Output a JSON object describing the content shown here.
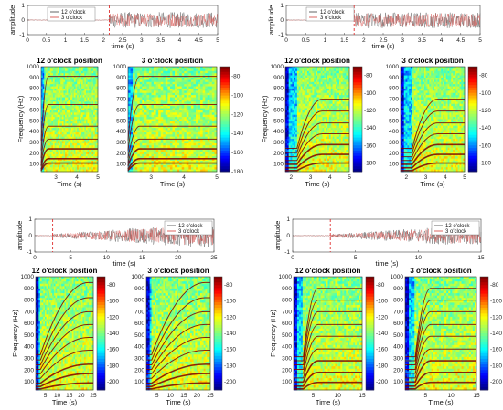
{
  "chart_data": [
    {
      "type": "line",
      "quadrant": "top-left",
      "xlabel": "time (s)",
      "ylabel": "amplitude",
      "xlim": [
        0,
        5
      ],
      "ylim": [
        -1,
        1
      ],
      "xticks": [
        "0",
        "0.5",
        "1",
        "1.5",
        "2",
        "2.5",
        "3",
        "3.5",
        "4",
        "4.5",
        "5"
      ],
      "yticks": [
        "1",
        "0",
        "-1"
      ],
      "event_time": 2.15,
      "envelope": {
        "max_amplitude": 0.55,
        "ramp": "step"
      },
      "legend": [
        "12 o'clock",
        "3 o'clock"
      ],
      "legend_position": "top-left",
      "series_colors": [
        "#555555",
        "#d9534f"
      ]
    },
    {
      "type": "line",
      "quadrant": "top-right",
      "xlabel": "time (s)",
      "ylabel": "amplitude",
      "xlim": [
        0,
        5
      ],
      "ylim": [
        -1,
        1
      ],
      "xticks": [
        "0",
        "0.5",
        "1",
        "1.5",
        "2",
        "2.5",
        "3",
        "3.5",
        "4",
        "4.5",
        "5"
      ],
      "yticks": [
        "1",
        "0",
        "-1"
      ],
      "event_time": 1.75,
      "envelope": {
        "max_amplitude": 0.55,
        "ramp": "step"
      },
      "legend": [
        "12 o'clock",
        "3 o'clock"
      ],
      "legend_position": "top-left",
      "series_colors": [
        "#555555",
        "#d9534f"
      ]
    },
    {
      "type": "line",
      "quadrant": "bottom-left",
      "xlabel": "time (s)",
      "ylabel": "amplitude",
      "xlim": [
        0,
        25
      ],
      "ylim": [
        -1,
        1
      ],
      "xticks": [
        "0",
        "5",
        "10",
        "15",
        "20",
        "25"
      ],
      "yticks": [
        "1",
        "0",
        "-1"
      ],
      "event_time": 2.5,
      "envelope": {
        "max_amplitude": 0.7,
        "ramp": "linear"
      },
      "legend": [
        "12 o'clock",
        "3 o'clock"
      ],
      "legend_position": "top-right",
      "series_colors": [
        "#555555",
        "#d9534f"
      ]
    },
    {
      "type": "line",
      "quadrant": "bottom-right",
      "xlabel": "time (s)",
      "ylabel": "amplitude",
      "xlim": [
        0,
        15
      ],
      "ylim": [
        -1,
        1
      ],
      "xticks": [
        "0",
        "5",
        "10",
        "15"
      ],
      "yticks": [
        "1",
        "0",
        "-1"
      ],
      "event_time": 3,
      "envelope": {
        "max_amplitude": 0.6,
        "ramp": "linear"
      },
      "legend": [
        "12 o'clock",
        "3 o'clock"
      ],
      "legend_position": "top-right",
      "series_colors": [
        "#555555",
        "#d9534f"
      ]
    },
    {
      "type": "heatmap",
      "quadrant": "top-left",
      "title": "12 o'clock position",
      "xlabel": "Time (s)",
      "ylabel": "Frequency (Hz)",
      "xlim": [
        2.3,
        5
      ],
      "ylim": [
        30,
        1000
      ],
      "xticks": [
        "3",
        "4",
        "5"
      ],
      "yticks": [
        "100",
        "200",
        "300",
        "400",
        "500",
        "600",
        "700",
        "800",
        "900",
        "1000"
      ],
      "harmonics_hz": [
        110,
        150,
        240,
        330,
        450,
        650,
        910
      ],
      "sweep": {
        "onset_s": 2.3,
        "duration_s": 0.35
      },
      "colormap": "jet",
      "clim": [
        -180,
        -70
      ]
    },
    {
      "type": "heatmap",
      "quadrant": "top-left",
      "title": "3 o'clock position",
      "xlabel": "Time (s)",
      "ylabel": "",
      "xlim": [
        2.3,
        5
      ],
      "ylim": [
        30,
        1000
      ],
      "xticks": [
        "3",
        "4",
        "5"
      ],
      "yticks": [
        "100",
        "200",
        "300",
        "400",
        "500",
        "600",
        "700",
        "800",
        "900",
        "1000"
      ],
      "harmonics_hz": [
        110,
        150,
        240,
        330,
        450,
        650,
        910
      ],
      "sweep": {
        "onset_s": 2.3,
        "duration_s": 0.35
      },
      "colormap": "jet",
      "clim": [
        -180,
        -70
      ],
      "colorbar_ticks": [
        "-80",
        "-100",
        "-120",
        "-140",
        "-160",
        "-180"
      ]
    },
    {
      "type": "heatmap",
      "quadrant": "top-right",
      "title": "12 o'clock position",
      "xlabel": "Time (s)",
      "ylabel": "Frequency (Hz)",
      "xlim": [
        1.7,
        5
      ],
      "ylim": [
        30,
        1000
      ],
      "xticks": [
        "2",
        "3",
        "4",
        "5"
      ],
      "yticks": [
        "100",
        "200",
        "300",
        "400",
        "500",
        "600",
        "700",
        "800",
        "900",
        "1000"
      ],
      "harmonics_hz": [
        110,
        190,
        280,
        380,
        480,
        590,
        700
      ],
      "sweep": {
        "onset_s": 2.3,
        "duration_s": 1.3
      },
      "colormap": "jet",
      "clim": [
        -190,
        -70
      ],
      "colorbar_ticks": [
        "-80",
        "-100",
        "-120",
        "-140",
        "-160",
        "-180"
      ]
    },
    {
      "type": "heatmap",
      "quadrant": "top-right",
      "title": "3 o'clock position",
      "xlabel": "Time (s)",
      "ylabel": "",
      "xlim": [
        1.7,
        5
      ],
      "ylim": [
        30,
        1000
      ],
      "xticks": [
        "2",
        "3",
        "4",
        "5"
      ],
      "yticks": [
        "100",
        "200",
        "300",
        "400",
        "500",
        "600",
        "700",
        "800",
        "900",
        "1000"
      ],
      "harmonics_hz": [
        110,
        190,
        280,
        380,
        480,
        590,
        700
      ],
      "sweep": {
        "onset_s": 2.3,
        "duration_s": 1.3
      },
      "colormap": "jet",
      "clim": [
        -190,
        -70
      ],
      "colorbar_ticks": [
        "-80",
        "-100",
        "-120",
        "-140",
        "-160",
        "-180"
      ]
    },
    {
      "type": "heatmap",
      "quadrant": "bottom-left",
      "title": "12 o'clock position",
      "xlabel": "Time (s)",
      "ylabel": "Frequency (Hz)",
      "xlim": [
        1,
        25
      ],
      "ylim": [
        30,
        1000
      ],
      "xticks": [
        "5",
        "10",
        "15",
        "20",
        "25"
      ],
      "yticks": [
        "100",
        "200",
        "300",
        "400",
        "500",
        "600",
        "700",
        "800",
        "900",
        "1000"
      ],
      "harmonics_hz": [
        90,
        170,
        250,
        370,
        480,
        590,
        700,
        820,
        950
      ],
      "sweep": {
        "onset_s": 3,
        "duration_s": 20
      },
      "colormap": "jet",
      "clim": [
        -210,
        -70
      ],
      "colorbar_ticks": [
        "-80",
        "-100",
        "-120",
        "-140",
        "-160",
        "-180",
        "-200"
      ]
    },
    {
      "type": "heatmap",
      "quadrant": "bottom-left",
      "title": "3 o'clock position",
      "xlabel": "Time (s)",
      "ylabel": "",
      "xlim": [
        1,
        25
      ],
      "ylim": [
        30,
        1000
      ],
      "xticks": [
        "5",
        "10",
        "15",
        "20",
        "25"
      ],
      "yticks": [
        "100",
        "200",
        "300",
        "400",
        "500",
        "600",
        "700",
        "800",
        "900",
        "1000"
      ],
      "harmonics_hz": [
        90,
        170,
        250,
        370,
        480,
        590,
        700,
        820,
        950
      ],
      "sweep": {
        "onset_s": 3,
        "duration_s": 20
      },
      "colormap": "jet",
      "clim": [
        -210,
        -70
      ],
      "colorbar_ticks": [
        "-80",
        "-100",
        "-120",
        "-140",
        "-160",
        "-180",
        "-200"
      ]
    },
    {
      "type": "heatmap",
      "quadrant": "bottom-right",
      "title": "12 o'clock position",
      "xlabel": "Time (s)",
      "ylabel": "Frequency (Hz)",
      "xlim": [
        1,
        15
      ],
      "ylim": [
        30,
        1000
      ],
      "xticks": [
        "5",
        "10",
        "15"
      ],
      "yticks": [
        "100",
        "200",
        "300",
        "400",
        "500",
        "600",
        "700",
        "800",
        "900",
        "1000"
      ],
      "harmonics_hz": [
        95,
        180,
        280,
        380,
        490,
        590,
        700,
        800,
        900
      ],
      "sweep": {
        "onset_s": 3,
        "duration_s": 3
      },
      "colormap": "jet",
      "clim": [
        -210,
        -70
      ],
      "colorbar_ticks": [
        "-80",
        "-100",
        "-120",
        "-140",
        "-160",
        "-180",
        "-200"
      ]
    },
    {
      "type": "heatmap",
      "quadrant": "bottom-right",
      "title": "3 o'clock position",
      "xlabel": "Time (s)",
      "ylabel": "",
      "xlim": [
        1,
        15
      ],
      "ylim": [
        30,
        1000
      ],
      "xticks": [
        "5",
        "10",
        "15"
      ],
      "yticks": [
        "100",
        "200",
        "300",
        "400",
        "500",
        "600",
        "700",
        "800",
        "900",
        "1000"
      ],
      "harmonics_hz": [
        95,
        180,
        280,
        380,
        490,
        590,
        700,
        800,
        900
      ],
      "sweep": {
        "onset_s": 3,
        "duration_s": 3
      },
      "colormap": "jet",
      "clim": [
        -210,
        -70
      ],
      "colorbar_ticks": [
        "-80",
        "-100",
        "-120",
        "-140",
        "-160",
        "-180",
        "-200"
      ]
    }
  ]
}
